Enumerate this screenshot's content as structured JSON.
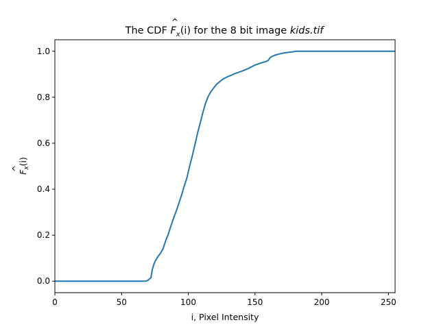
{
  "chart_data": {
    "type": "line",
    "title_parts": {
      "prefix": "The CDF ",
      "symbol": "F",
      "hat": "^",
      "subscript": "x",
      "arg": "(i)",
      "middle": " for the 8 bit image ",
      "filename": "kids.tif"
    },
    "xlabel": "i, Pixel Intensity",
    "ylabel_parts": {
      "symbol": "F",
      "hat": "^",
      "subscript": "x",
      "arg": "(i)"
    },
    "xlim": [
      0,
      255
    ],
    "ylim": [
      -0.05,
      1.05
    ],
    "xticks": [
      0,
      50,
      100,
      150,
      200,
      250
    ],
    "yticks": [
      0.0,
      0.2,
      0.4,
      0.6,
      0.8,
      1.0
    ],
    "xtick_labels": [
      "0",
      "50",
      "100",
      "150",
      "200",
      "250"
    ],
    "ytick_labels": [
      "0.0",
      "0.2",
      "0.4",
      "0.6",
      "0.8",
      "1.0"
    ],
    "grid": false,
    "line_color": "#1f77b4",
    "series": [
      {
        "x": [
          0,
          68,
          69,
          70,
          71,
          72,
          73,
          74,
          75,
          77,
          79,
          81,
          83,
          85,
          87,
          89,
          91,
          93,
          95,
          97,
          99,
          101,
          103,
          105,
          107,
          109,
          111,
          113,
          115,
          117,
          119,
          121,
          123,
          125,
          127,
          129,
          131,
          133,
          135,
          140,
          145,
          150,
          155,
          158,
          160,
          161,
          162,
          163,
          165,
          168,
          172,
          176,
          179,
          180,
          200,
          220,
          255
        ],
        "y": [
          0.0,
          0.0,
          0.002,
          0.005,
          0.01,
          0.015,
          0.05,
          0.07,
          0.085,
          0.105,
          0.12,
          0.14,
          0.175,
          0.205,
          0.24,
          0.275,
          0.305,
          0.34,
          0.375,
          0.415,
          0.45,
          0.5,
          0.545,
          0.595,
          0.645,
          0.69,
          0.735,
          0.775,
          0.805,
          0.825,
          0.84,
          0.855,
          0.865,
          0.875,
          0.882,
          0.888,
          0.893,
          0.898,
          0.903,
          0.913,
          0.925,
          0.94,
          0.95,
          0.955,
          0.96,
          0.97,
          0.975,
          0.978,
          0.983,
          0.988,
          0.993,
          0.996,
          0.998,
          1.0,
          1.0,
          1.0,
          1.0
        ]
      }
    ]
  }
}
